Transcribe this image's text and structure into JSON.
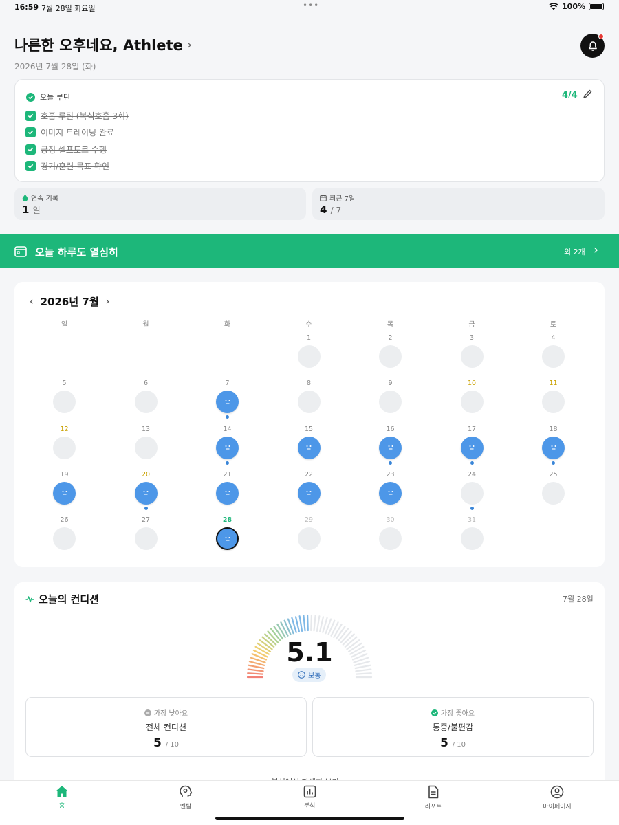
{
  "status": {
    "time": "16:59",
    "date": "7월 28일 화요일",
    "battery": "100%"
  },
  "header": {
    "greeting": "나른한 오후네요, Athlete",
    "date": "2026년 7월 28일 (화)"
  },
  "routine": {
    "title": "오늘 루틴",
    "count": "4/4",
    "items": [
      "호흡 루틴 (복식호흡 3회)",
      "이미지 트레이닝 완료",
      "긍정 셀프토크 수행",
      "경기/훈련 목표 확인"
    ]
  },
  "stats": {
    "streak": {
      "label": "연속 기록",
      "value": "1",
      "unit": "일"
    },
    "recent": {
      "label": "최근 7일",
      "value": "4",
      "unit": "/ 7"
    }
  },
  "banner": {
    "text": "오늘 하루도 열심히",
    "more": "외 2개"
  },
  "calendar": {
    "title": "2026년 7월",
    "weekdays": [
      "일",
      "월",
      "화",
      "수",
      "목",
      "금",
      "토"
    ],
    "start_offset": 3,
    "days": [
      {
        "d": "1"
      },
      {
        "d": "2"
      },
      {
        "d": "3"
      },
      {
        "d": "4"
      },
      {
        "d": "5"
      },
      {
        "d": "6"
      },
      {
        "d": "7",
        "mood": true,
        "dot": true
      },
      {
        "d": "8"
      },
      {
        "d": "9"
      },
      {
        "d": "10",
        "holiday": true
      },
      {
        "d": "11",
        "holiday": true
      },
      {
        "d": "12",
        "holiday": true
      },
      {
        "d": "13"
      },
      {
        "d": "14",
        "mood": true,
        "dot": true
      },
      {
        "d": "15",
        "mood": true
      },
      {
        "d": "16",
        "mood": true,
        "dot": true
      },
      {
        "d": "17",
        "mood": true,
        "dot": true
      },
      {
        "d": "18",
        "mood": true,
        "dot": true
      },
      {
        "d": "19",
        "mood": true
      },
      {
        "d": "20",
        "mood": true,
        "dot": true,
        "holiday": true
      },
      {
        "d": "21",
        "mood": true
      },
      {
        "d": "22",
        "mood": true
      },
      {
        "d": "23",
        "mood": true
      },
      {
        "d": "24",
        "dot": true
      },
      {
        "d": "25"
      },
      {
        "d": "26"
      },
      {
        "d": "27"
      },
      {
        "d": "28",
        "mood": true,
        "today": true
      },
      {
        "d": "29",
        "faded": true
      },
      {
        "d": "30",
        "faded": true
      },
      {
        "d": "31",
        "faded": true
      }
    ]
  },
  "condition": {
    "title": "오늘의 컨디션",
    "date": "7월 28일",
    "score": "5.1",
    "score_value": 5.1,
    "score_max": 10,
    "badge": "보통",
    "lowest": {
      "label": "가장 낮아요",
      "name": "전체 컨디션",
      "value": "5",
      "max": "/ 10"
    },
    "highest": {
      "label": "가장 좋아요",
      "name": "통증/불편감",
      "value": "5",
      "max": "/ 10"
    },
    "link": "분석에서 자세히 보기  >"
  },
  "tabs": [
    {
      "label": "홈",
      "icon": "home-icon",
      "active": true
    },
    {
      "label": "멘탈",
      "icon": "head-icon"
    },
    {
      "label": "분석",
      "icon": "chart-icon"
    },
    {
      "label": "리포트",
      "icon": "document-icon"
    },
    {
      "label": "마이페이지",
      "icon": "person-icon"
    }
  ],
  "colors": {
    "accent": "#1db77a",
    "mood": "#4d97e8",
    "holiday": "#c9a100"
  }
}
